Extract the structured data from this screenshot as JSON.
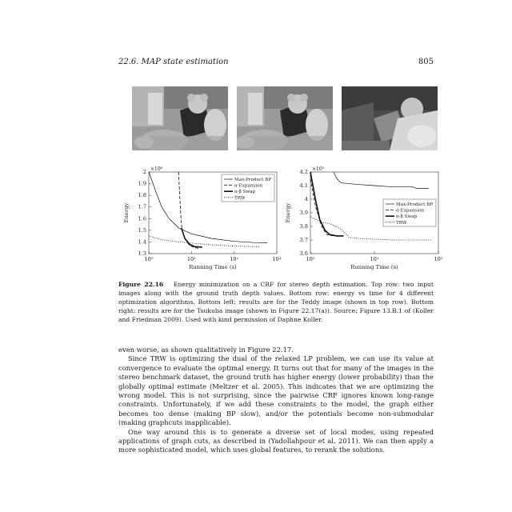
{
  "header": {
    "section": "22.6.  MAP state estimation",
    "page_number": "805"
  },
  "images": [
    {
      "name": "teddy-input-1"
    },
    {
      "name": "teddy-input-2"
    },
    {
      "name": "tsukuba-ground-truth"
    }
  ],
  "chart_data": [
    {
      "type": "line",
      "title": "",
      "xlabel": "Running Time (s)",
      "ylabel": "Energy",
      "multiplier": "×10⁶",
      "x_scale": "log",
      "xlim": [
        1,
        1000
      ],
      "ylim": [
        1.3,
        2.0
      ],
      "x_ticks": [
        1,
        10,
        100,
        1000
      ],
      "x_tick_labels": [
        "10⁰",
        "10¹",
        "10²",
        "10³"
      ],
      "y_ticks": [
        1.3,
        1.4,
        1.5,
        1.6,
        1.7,
        1.8,
        1.9,
        2.0
      ],
      "y_tick_labels": [
        "1.3",
        "1.4",
        "1.5",
        "1.6",
        "1.7",
        "1.8",
        "1.9",
        "2"
      ],
      "legend_position": "top-right",
      "series": [
        {
          "name": "Max-Product BP",
          "style": "solid-thin",
          "points": [
            [
              1,
              2.0
            ],
            [
              1.5,
              1.82
            ],
            [
              2,
              1.7
            ],
            [
              3,
              1.6
            ],
            [
              5,
              1.52
            ],
            [
              10,
              1.47
            ],
            [
              30,
              1.43
            ],
            [
              100,
              1.405
            ],
            [
              300,
              1.395
            ],
            [
              600,
              1.393
            ]
          ]
        },
        {
          "name": "α-Expansion",
          "style": "dashed",
          "points": [
            [
              5,
              2.0
            ],
            [
              5.3,
              1.8
            ],
            [
              5.7,
              1.6
            ],
            [
              6,
              1.5
            ],
            [
              7,
              1.43
            ],
            [
              9,
              1.37
            ],
            [
              12,
              1.35
            ],
            [
              15,
              1.345
            ]
          ]
        },
        {
          "name": "α-β Swap",
          "style": "solid-thick",
          "points": [
            [
              5.8,
              1.52
            ],
            [
              7,
              1.43
            ],
            [
              9,
              1.38
            ],
            [
              12,
              1.36
            ],
            [
              18,
              1.355
            ]
          ]
        },
        {
          "name": "TRW",
          "style": "dotted",
          "points": [
            [
              1,
              1.45
            ],
            [
              2,
              1.42
            ],
            [
              5,
              1.4
            ],
            [
              10,
              1.39
            ],
            [
              30,
              1.375
            ],
            [
              100,
              1.365
            ],
            [
              300,
              1.36
            ],
            [
              400,
              1.358
            ]
          ]
        }
      ]
    },
    {
      "type": "line",
      "title": "",
      "xlabel": "Running Time (s)",
      "ylabel": "Energy",
      "multiplier": "×10⁵",
      "x_scale": "log",
      "xlim": [
        1,
        100
      ],
      "ylim": [
        3.6,
        4.2
      ],
      "x_ticks": [
        1,
        10,
        100
      ],
      "x_tick_labels": [
        "10⁰",
        "10¹",
        "10²"
      ],
      "y_ticks": [
        3.6,
        3.7,
        3.8,
        3.9,
        4.0,
        4.1,
        4.2
      ],
      "y_tick_labels": [
        "3.6",
        "3.7",
        "3.8",
        "3.9",
        "4",
        "4.1",
        "4.2"
      ],
      "legend_position": "right",
      "series": [
        {
          "name": "Max-Product BP",
          "style": "solid-thin",
          "points": [
            [
              2.3,
              4.2
            ],
            [
              2.6,
              4.15
            ],
            [
              3,
              4.12
            ],
            [
              5,
              4.11
            ],
            [
              10,
              4.1
            ],
            [
              20,
              4.09
            ],
            [
              40,
              4.09
            ],
            [
              45,
              4.08
            ],
            [
              70,
              4.08
            ]
          ]
        },
        {
          "name": "α-Expansion",
          "style": "dashed",
          "points": [
            [
              1,
              4.15
            ],
            [
              1.2,
              3.95
            ],
            [
              1.5,
              3.8
            ],
            [
              1.8,
              3.74
            ],
            [
              2.3,
              3.73
            ],
            [
              2.6,
              3.73
            ]
          ]
        },
        {
          "name": "α-β Swap",
          "style": "solid-thick",
          "points": [
            [
              1,
              4.2
            ],
            [
              1.2,
              4.0
            ],
            [
              1.4,
              3.85
            ],
            [
              1.7,
              3.77
            ],
            [
              2,
              3.74
            ],
            [
              2.6,
              3.73
            ],
            [
              3.3,
              3.73
            ]
          ]
        },
        {
          "name": "TRW",
          "style": "dotted",
          "points": [
            [
              1,
              3.87
            ],
            [
              1.5,
              3.83
            ],
            [
              2,
              3.82
            ],
            [
              2.5,
              3.8
            ],
            [
              3,
              3.78
            ],
            [
              4,
              3.72
            ],
            [
              6,
              3.71
            ],
            [
              20,
              3.7
            ],
            [
              80,
              3.7
            ]
          ]
        }
      ]
    }
  ],
  "caption": {
    "label": "Figure 22.16",
    "text": "Energy minimization on a CRF for stereo depth estimation. Top row: two input images along with the ground truth depth values. Bottom row: energy vs time for 4 different optimization algorithms. Bottom left: results are for the Teddy image (shown in top row). Bottom right: results are for the Tsukuba image (shown in Figure 22.17(a)).   Source: Figure 13.B.1 of (Koller and Friedman 2009).   Used with kind permission of Daphne Koller."
  },
  "body": {
    "p1": "even worse, as shown qualitatively in Figure 22.17.",
    "p2": "Since TRW is optimizing the dual of the relaxed LP problem, we can use its value at convergence to evaluate the optimal energy. It turns out that for many of the images in the stereo benchmark dataset, the ground truth has higher energy (lower probability) than the globally optimal estimate (Meltzer et al. 2005). This indicates that we are optimizing the wrong model. This is not surprising, since the pairwise CRF ignores known long-range constraints. Unfortunately, if we add these constraints to the model, the graph either becomes too dense (making BP slow), and/or the potentials become non-submodular (making graphcuts inapplicable).",
    "p3": "One way around this is to generate a diverse set of local modes, using repeated applications of graph cuts, as described in (Yadollahpour et al. 2011). We can then apply a more sophisticated model, which uses global features, to rerank the solutions."
  }
}
